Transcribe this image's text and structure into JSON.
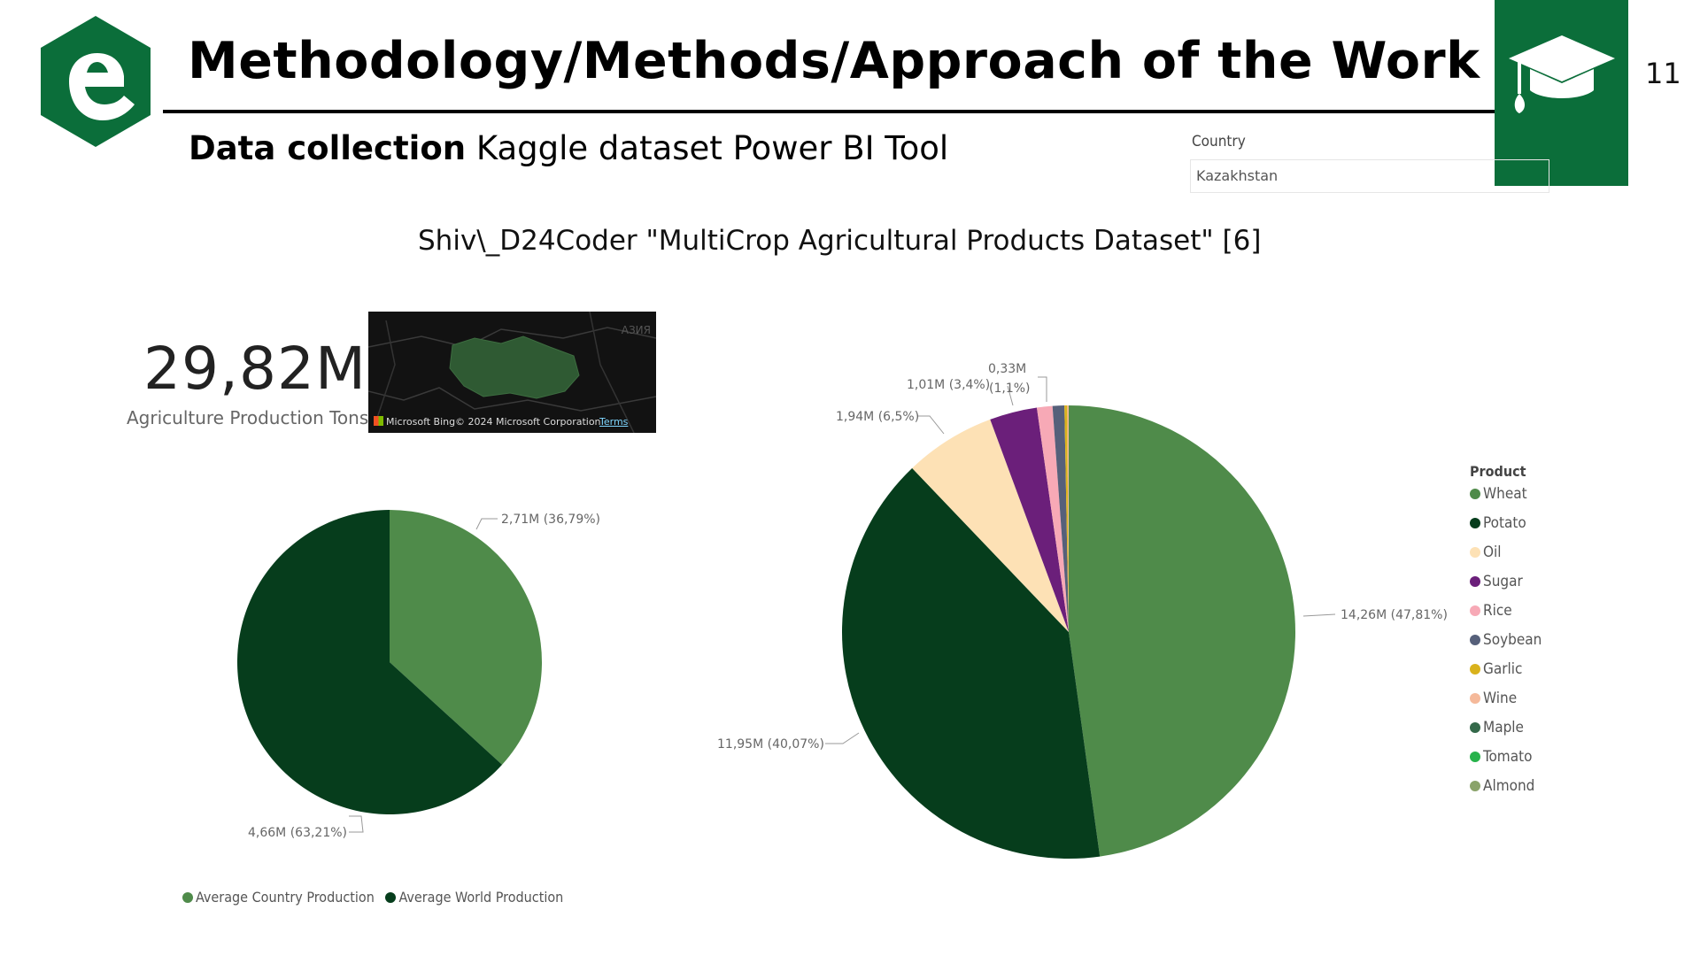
{
  "header": {
    "title": "Methodology/Methods/Approach of the Work",
    "page_number": "11",
    "logo_icon": "e-hexagon-logo-icon",
    "badge_icon": "graduation-cap-icon",
    "brand_color": "#0b6e3a"
  },
  "subtitle": {
    "bold": "Data collection",
    "rest": " Kaggle dataset Power BI Tool"
  },
  "citation": "Shiv\\_D24Coder \"MultiCrop Agricultural Products Dataset\" [6]",
  "slicer": {
    "label": "Country",
    "value": "Kazakhstan"
  },
  "kpi": {
    "value": "29,82M",
    "label": "Agriculture Production Tons"
  },
  "map": {
    "region_label": "АЗИЯ",
    "provider": "Microsoft Bing",
    "copyright": "© 2024 Microsoft Corporation",
    "terms": "Terms"
  },
  "chart_data": [
    {
      "type": "pie",
      "slices": [
        {
          "name": "Average Country Production",
          "value": 2.71,
          "percent": 36.79,
          "label": "2,71M (36,79%)",
          "color": "#4f8b4a"
        },
        {
          "name": "Average World Production",
          "value": 4.66,
          "percent": 63.21,
          "label": "4,66M (63,21%)",
          "color": "#063d1c"
        }
      ],
      "legend": {
        "placement": "bottom",
        "entries": [
          "Average Country Production",
          "Average World Production"
        ]
      }
    },
    {
      "type": "pie",
      "legend_title": "Product",
      "slices": [
        {
          "name": "Wheat",
          "value": 14.26,
          "percent": 47.81,
          "label": "14,26M (47,81%)",
          "color": "#4f8b4a"
        },
        {
          "name": "Potato",
          "value": 11.95,
          "percent": 40.07,
          "label": "11,95M (40,07%)",
          "color": "#063d1c"
        },
        {
          "name": "Oil",
          "value": 1.94,
          "percent": 6.5,
          "label": "1,94M (6,5%)",
          "color": "#fde1b5"
        },
        {
          "name": "Sugar",
          "value": 1.01,
          "percent": 3.4,
          "label": "1,01M (3,4%)",
          "color": "#6b1f7a"
        },
        {
          "name": "Rice",
          "value": 0.33,
          "percent": 1.1,
          "label": "0,33M",
          "color": "#f7a9b6"
        },
        {
          "name": "Soybean",
          "value": 0.25,
          "percent": 0.8,
          "label": "(1,1%)",
          "color": "#56607a"
        },
        {
          "name": "Garlic",
          "value": 0.06,
          "percent": 0.2,
          "label": "",
          "color": "#d9b21c"
        },
        {
          "name": "Wine",
          "value": 0.03,
          "percent": 0.1,
          "label": "",
          "color": "#f5b99a"
        },
        {
          "name": "Maple",
          "value": 0.0,
          "percent": 0.0,
          "label": "",
          "color": "#34694a"
        },
        {
          "name": "Tomato",
          "value": 0.0,
          "percent": 0.0,
          "label": "",
          "color": "#27b24b"
        },
        {
          "name": "Almond",
          "value": 0.0,
          "percent": 0.0,
          "label": "",
          "color": "#8aa36a"
        }
      ],
      "legend": {
        "placement": "right"
      }
    }
  ]
}
